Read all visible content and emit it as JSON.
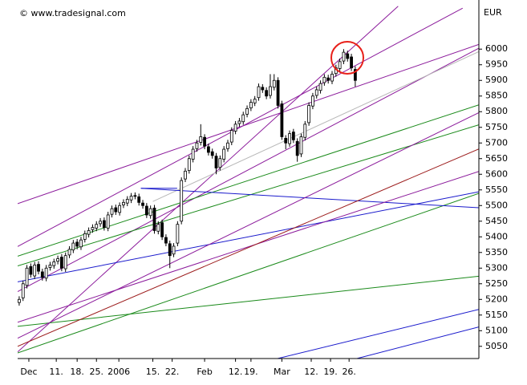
{
  "chart_data": {
    "type": "candlestick",
    "watermark": "© www.tradesignal.com",
    "y_axis_label": "EUR",
    "xlim": [
      -0.4,
      119
    ],
    "xticks": [
      {
        "value": 2.5,
        "label": "Dec"
      },
      {
        "value": 9.6,
        "label": "11."
      },
      {
        "value": 15,
        "label": "18."
      },
      {
        "value": 20,
        "label": "25."
      },
      {
        "value": 25.8,
        "label": "2006"
      },
      {
        "value": 34.6,
        "label": "15."
      },
      {
        "value": 39.6,
        "label": "22."
      },
      {
        "value": 48,
        "label": "Feb"
      },
      {
        "value": 56,
        "label": "12."
      },
      {
        "value": 60,
        "label": "19."
      },
      {
        "value": 68,
        "label": "Mar"
      },
      {
        "value": 75.6,
        "label": "12."
      },
      {
        "value": 80.6,
        "label": "19."
      },
      {
        "value": 85.4,
        "label": "26."
      }
    ],
    "ylim": [
      5011,
      6157
    ],
    "yticks": [
      5050,
      5100,
      5150,
      5200,
      5250,
      5300,
      5350,
      5400,
      5450,
      5500,
      5550,
      5600,
      5650,
      5700,
      5750,
      5800,
      5850,
      5900,
      5950,
      6000
    ],
    "up_color": "#ffffff",
    "down_color": "#000000",
    "open": [
      5190,
      5205,
      5245,
      5305,
      5275,
      5312,
      5288,
      5268,
      5302,
      5308,
      5322,
      5335,
      5298,
      5342,
      5358,
      5383,
      5368,
      5392,
      5408,
      5423,
      5428,
      5442,
      5452,
      5428,
      5472,
      5493,
      5478,
      5502,
      5508,
      5518,
      5532,
      5528,
      5508,
      5498,
      5468,
      5492,
      5418,
      5445,
      5398,
      5378,
      5345,
      5380,
      5450,
      5585,
      5612,
      5648,
      5682,
      5702,
      5718,
      5688,
      5672,
      5658,
      5622,
      5648,
      5682,
      5703,
      5738,
      5762,
      5768,
      5792,
      5812,
      5828,
      5845,
      5878,
      5868,
      5852,
      5878,
      5900,
      5825,
      5715,
      5698,
      5735,
      5705,
      5665,
      5718,
      5765,
      5818,
      5852,
      5868,
      5893,
      5908,
      5898,
      5922,
      5938,
      5962,
      5985,
      5975,
      5935
    ],
    "high": [
      5210,
      5260,
      5310,
      5315,
      5320,
      5322,
      5298,
      5310,
      5320,
      5330,
      5340,
      5345,
      5350,
      5370,
      5390,
      5393,
      5400,
      5420,
      5430,
      5440,
      5450,
      5460,
      5462,
      5480,
      5500,
      5503,
      5510,
      5520,
      5530,
      5540,
      5542,
      5538,
      5518,
      5508,
      5500,
      5502,
      5450,
      5455,
      5408,
      5388,
      5380,
      5450,
      5590,
      5620,
      5660,
      5690,
      5710,
      5760,
      5728,
      5698,
      5682,
      5668,
      5660,
      5690,
      5710,
      5750,
      5770,
      5780,
      5800,
      5820,
      5840,
      5850,
      5890,
      5888,
      5878,
      5920,
      5920,
      5910,
      5835,
      5725,
      5740,
      5745,
      5715,
      5730,
      5770,
      5830,
      5860,
      5880,
      5900,
      5920,
      5918,
      5930,
      5950,
      5970,
      6000,
      5995,
      5985,
      5945
    ],
    "low": [
      5180,
      5195,
      5235,
      5270,
      5265,
      5280,
      5260,
      5258,
      5292,
      5298,
      5312,
      5290,
      5288,
      5332,
      5348,
      5360,
      5358,
      5382,
      5398,
      5413,
      5418,
      5432,
      5420,
      5418,
      5462,
      5470,
      5468,
      5492,
      5498,
      5508,
      5520,
      5500,
      5490,
      5460,
      5458,
      5410,
      5408,
      5390,
      5370,
      5300,
      5335,
      5370,
      5440,
      5575,
      5602,
      5638,
      5672,
      5692,
      5680,
      5660,
      5650,
      5600,
      5612,
      5638,
      5672,
      5693,
      5728,
      5752,
      5758,
      5782,
      5802,
      5818,
      5835,
      5860,
      5840,
      5842,
      5868,
      5810,
      5710,
      5680,
      5688,
      5700,
      5640,
      5655,
      5708,
      5755,
      5808,
      5842,
      5858,
      5883,
      5890,
      5888,
      5912,
      5928,
      5952,
      5960,
      5930,
      5880
    ],
    "close": [
      5200,
      5250,
      5300,
      5280,
      5310,
      5290,
      5270,
      5300,
      5310,
      5320,
      5330,
      5300,
      5340,
      5360,
      5380,
      5370,
      5390,
      5410,
      5420,
      5430,
      5440,
      5450,
      5430,
      5470,
      5490,
      5480,
      5500,
      5510,
      5520,
      5530,
      5530,
      5510,
      5500,
      5470,
      5490,
      5420,
      5440,
      5400,
      5380,
      5340,
      5370,
      5440,
      5580,
      5610,
      5650,
      5680,
      5700,
      5720,
      5690,
      5670,
      5660,
      5620,
      5650,
      5680,
      5700,
      5740,
      5760,
      5770,
      5790,
      5810,
      5830,
      5840,
      5880,
      5870,
      5850,
      5880,
      5900,
      5820,
      5720,
      5700,
      5730,
      5710,
      5660,
      5720,
      5760,
      5820,
      5850,
      5870,
      5890,
      5910,
      5900,
      5920,
      5940,
      5960,
      5990,
      5970,
      5940,
      5900
    ],
    "trendlines": [
      {
        "color": "#8b1a9b",
        "points": [
          [
            -0.4,
            5506
          ],
          [
            119,
            6015
          ]
        ]
      },
      {
        "color": "#8b1a9b",
        "points": [
          [
            -0.4,
            5369
          ],
          [
            114.8,
            6131
          ]
        ]
      },
      {
        "color": "#8b1a9b",
        "points": [
          [
            -0.4,
            5032
          ],
          [
            98.1,
            6137
          ]
        ]
      },
      {
        "color": "#8b1a9b",
        "points": [
          [
            -0.4,
            5225
          ],
          [
            119,
            6003
          ]
        ]
      },
      {
        "color": "#b8b8b8",
        "points": [
          [
            34.6,
            5513
          ],
          [
            119,
            5992
          ]
        ]
      },
      {
        "color": "#1a8a1a",
        "points": [
          [
            -0.4,
            5338
          ],
          [
            119,
            5822
          ]
        ]
      },
      {
        "color": "#1a8a1a",
        "points": [
          [
            -0.4,
            5307
          ],
          [
            119,
            5758
          ]
        ]
      },
      {
        "color": "#1a8a1a",
        "points": [
          [
            -0.4,
            5029
          ],
          [
            119,
            5539
          ]
        ]
      },
      {
        "color": "#1a8a1a",
        "points": [
          [
            -0.4,
            5114
          ],
          [
            119,
            5274
          ]
        ]
      },
      {
        "color": "#1a1acc",
        "points": [
          [
            31.5,
            5555
          ],
          [
            119,
            5493
          ]
        ]
      },
      {
        "color": "#1a1acc",
        "points": [
          [
            -0.4,
            5256
          ],
          [
            119,
            5544
          ]
        ]
      },
      {
        "color": "#1a1acc",
        "points": [
          [
            61.25,
            4994
          ],
          [
            119,
            5168
          ]
        ]
      },
      {
        "color": "#1a1acc",
        "points": [
          [
            82.1,
            4994
          ],
          [
            119,
            5112
          ]
        ]
      },
      {
        "color": "#8b1a9b",
        "points": [
          [
            -0.4,
            5127
          ],
          [
            119,
            5609
          ]
        ]
      },
      {
        "color": "#9b1a1a",
        "points": [
          [
            -0.4,
            5050
          ],
          [
            119,
            5681
          ]
        ]
      },
      {
        "color": "#8b1a9b",
        "points": [
          [
            -0.4,
            5076
          ],
          [
            119,
            5797
          ]
        ]
      },
      {
        "color": "#1a1acc",
        "points": [
          [
            31.5,
            5555
          ],
          [
            40.9,
            5555
          ]
        ]
      }
    ]
  }
}
